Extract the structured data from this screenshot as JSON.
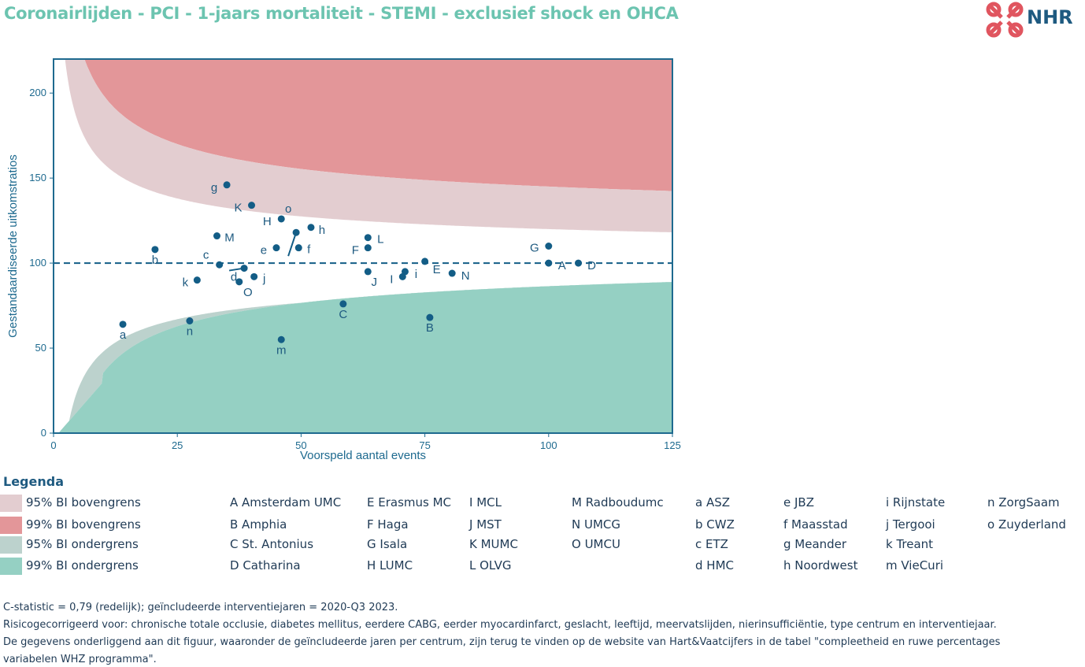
{
  "title": "Coronairlijden - PCI - 1-jaars mortaliteit - STEMI - exclusief shock en OHCA",
  "logo": {
    "text": "NHR"
  },
  "colors": {
    "upper95": "#e3cdd0",
    "upper99": "#e39699",
    "lower95": "#bcd2cd",
    "lower99": "#95d0c3",
    "point": "#135d86",
    "axis": "#1e6a8f",
    "title": "#6cc4b0"
  },
  "chart_data": {
    "type": "scatter",
    "xlabel": "Voorspeld aantal events",
    "ylabel": "Gestandaardiseerde uitkomstratios",
    "xlim": [
      0,
      125
    ],
    "ylim": [
      0,
      220
    ],
    "xticks": [
      0,
      25,
      50,
      75,
      100,
      125
    ],
    "yticks": [
      0,
      50,
      100,
      150,
      200
    ],
    "reference_line": 100,
    "points": [
      {
        "label": "a",
        "x": 14,
        "y": 64
      },
      {
        "label": "b",
        "x": 20.5,
        "y": 108
      },
      {
        "label": "c",
        "x": 33.5,
        "y": 99
      },
      {
        "label": "d",
        "x": 38.5,
        "y": 97
      },
      {
        "label": "e",
        "x": 45,
        "y": 109
      },
      {
        "label": "f",
        "x": 49.5,
        "y": 109
      },
      {
        "label": "g",
        "x": 35,
        "y": 146
      },
      {
        "label": "h",
        "x": 52,
        "y": 121
      },
      {
        "label": "i",
        "x": 71,
        "y": 95
      },
      {
        "label": "j",
        "x": 40.5,
        "y": 92
      },
      {
        "label": "k",
        "x": 29,
        "y": 90
      },
      {
        "label": "m",
        "x": 46,
        "y": 55
      },
      {
        "label": "n",
        "x": 27.5,
        "y": 66
      },
      {
        "label": "o",
        "x": 49,
        "y": 118
      },
      {
        "label": "A",
        "x": 100,
        "y": 100
      },
      {
        "label": "B",
        "x": 76,
        "y": 68
      },
      {
        "label": "C",
        "x": 58.5,
        "y": 76
      },
      {
        "label": "D",
        "x": 106,
        "y": 100
      },
      {
        "label": "E",
        "x": 75,
        "y": 101
      },
      {
        "label": "F",
        "x": 63.5,
        "y": 109
      },
      {
        "label": "G",
        "x": 100,
        "y": 110
      },
      {
        "label": "H",
        "x": 46,
        "y": 126
      },
      {
        "label": "I",
        "x": 70.5,
        "y": 92
      },
      {
        "label": "J",
        "x": 63.5,
        "y": 95
      },
      {
        "label": "K",
        "x": 40,
        "y": 134
      },
      {
        "label": "L",
        "x": 63.5,
        "y": 115
      },
      {
        "label": "M",
        "x": 33,
        "y": 116
      },
      {
        "label": "N",
        "x": 80.5,
        "y": 94
      },
      {
        "label": "O",
        "x": 37.5,
        "y": 89
      }
    ]
  },
  "legend": {
    "title": "Legenda",
    "bands": [
      {
        "label": "95% BI bovengrens",
        "color": "#e3cdd0"
      },
      {
        "label": "99% BI bovengrens",
        "color": "#e39699"
      },
      {
        "label": "95% BI ondergrens",
        "color": "#bcd2cd"
      },
      {
        "label": "99% BI ondergrens",
        "color": "#95d0c3"
      }
    ],
    "columns": [
      [
        "A Amsterdam UMC",
        "B Amphia",
        "C St. Antonius",
        "D Catharina"
      ],
      [
        "E Erasmus MC",
        "F Haga",
        "G Isala",
        "H LUMC"
      ],
      [
        "I MCL",
        "J MST",
        "K MUMC",
        "L OLVG"
      ],
      [
        "M Radboudumc",
        "N UMCG",
        "O UMCU"
      ],
      [
        "a ASZ",
        "b CWZ",
        "c ETZ",
        "d HMC"
      ],
      [
        "e JBZ",
        "f Maasstad",
        "g Meander",
        "h Noordwest"
      ],
      [
        "i Rijnstate",
        "j Tergooi",
        "k Treant",
        "m VieCuri"
      ],
      [
        "n ZorgSaam",
        "o Zuyderland"
      ]
    ]
  },
  "footnotes": [
    "C-statistic =  0,79 (redelijk); geïncludeerde interventiejaren = 2020-Q3 2023.",
    "Risicogecorrigeerd voor: chronische totale occlusie, diabetes mellitus, eerdere CABG, eerder myocardinfarct, geslacht, leeftijd, meervatslijden, nierinsufficiëntie, type centrum en interventiejaar.",
    "De gegevens onderliggend aan dit figuur, waaronder de geïncludeerde jaren per centrum, zijn terug te vinden op de website van Hart&Vaatcijfers in de tabel \"compleetheid en ruwe percentages",
    "variabelen WHZ programma\"."
  ]
}
